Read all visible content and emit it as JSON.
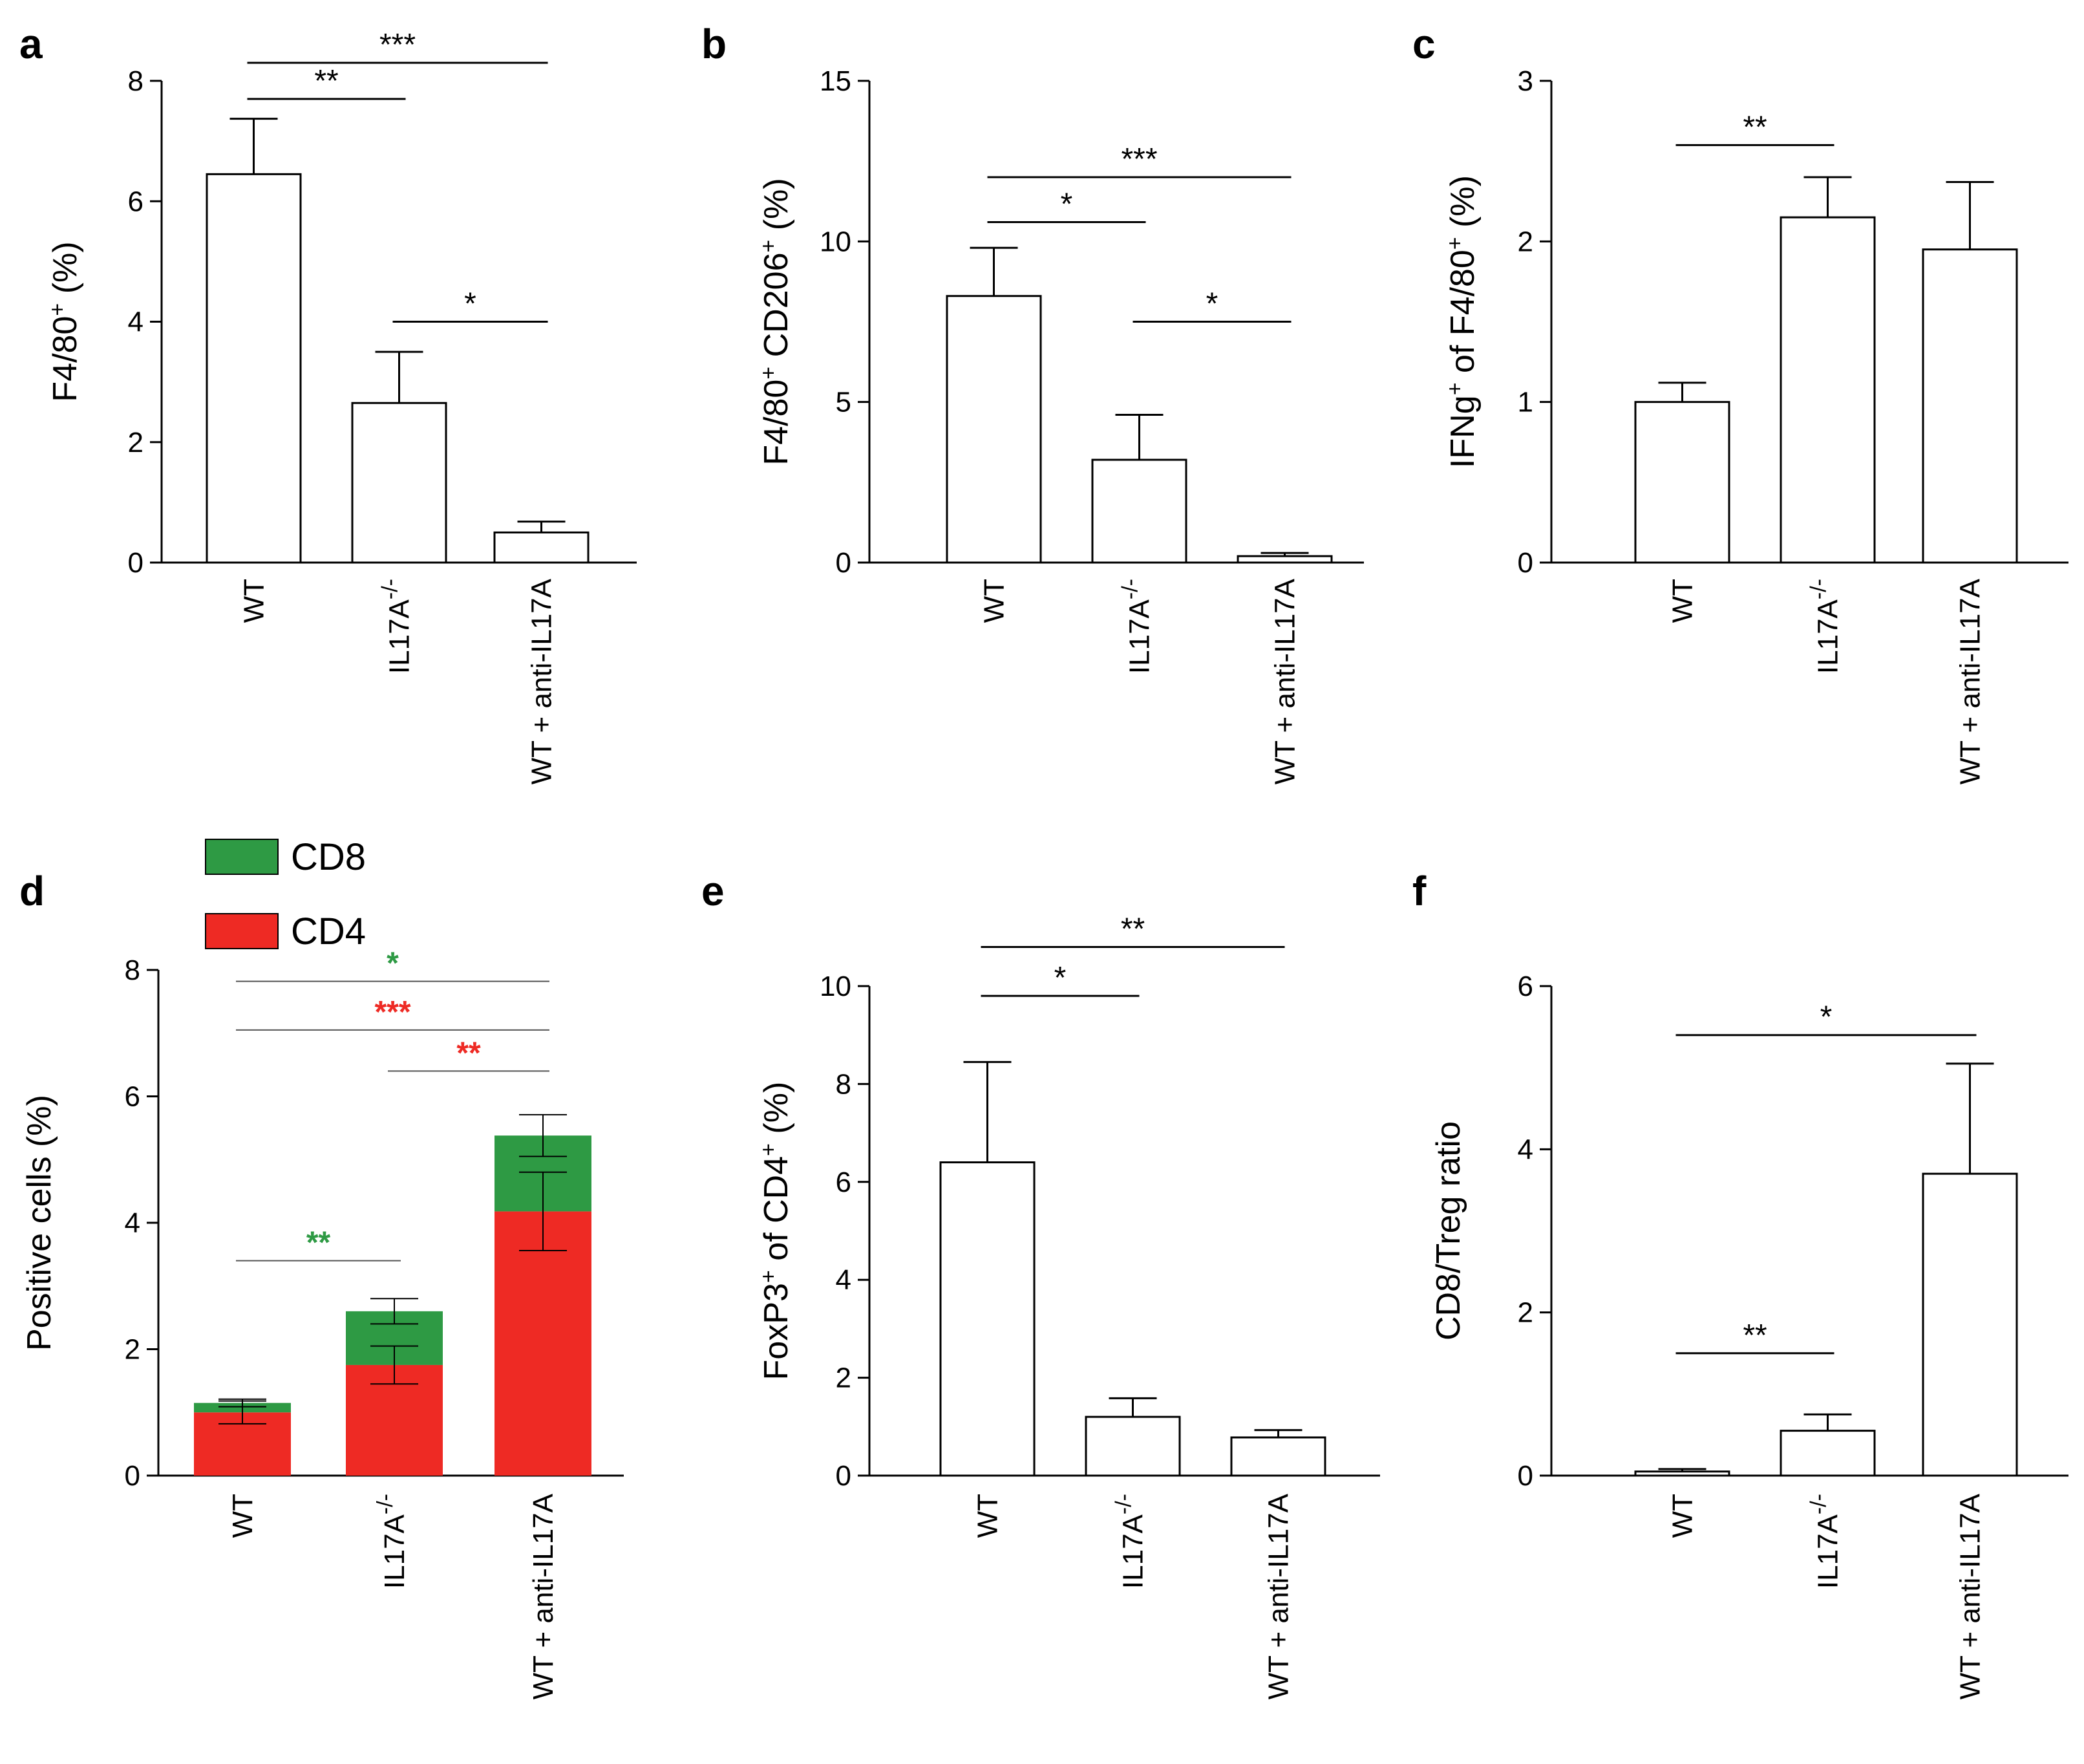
{
  "colors": {
    "cd8": "#2e9a44",
    "cd4": "#ee2a24",
    "black": "#000000"
  },
  "chart_data": [
    {
      "panel": "a",
      "type": "bar",
      "ylabel": {
        "pre": "F4/80",
        "sup1": "+",
        "post": " (%)",
        "sup2": "",
        "post2": ""
      },
      "ylim": [
        0,
        8
      ],
      "yticks": [
        0,
        2,
        4,
        6,
        8
      ],
      "categories": [
        {
          "main": "WT",
          "sup": ""
        },
        {
          "main": "IL17A",
          "sup": "-/-"
        },
        {
          "main": "WT + anti-IL17A",
          "sup": ""
        }
      ],
      "values": [
        6.45,
        2.65,
        0.5
      ],
      "errors": [
        0.92,
        0.85,
        0.18
      ],
      "significance": [
        {
          "from": 0,
          "to": 2,
          "y": 8.3,
          "label": "***",
          "color": "black"
        },
        {
          "from": 0,
          "to": 1,
          "y": 7.7,
          "label": "**",
          "color": "black"
        },
        {
          "from": 1,
          "to": 2,
          "y": 4.0,
          "label": "*",
          "color": "black"
        }
      ]
    },
    {
      "panel": "b",
      "type": "bar",
      "ylabel": {
        "pre": "F4/80",
        "sup1": "+",
        "post": " CD206",
        "sup2": "+",
        "post2": " (%)"
      },
      "ylim": [
        0,
        15
      ],
      "yticks": [
        0,
        5,
        10,
        15
      ],
      "categories": [
        {
          "main": "WT",
          "sup": ""
        },
        {
          "main": "IL17A",
          "sup": "-/-"
        },
        {
          "main": "WT + anti-IL17A",
          "sup": ""
        }
      ],
      "values": [
        8.3,
        3.2,
        0.2
      ],
      "errors": [
        1.5,
        1.4,
        0.1
      ],
      "significance": [
        {
          "from": 0,
          "to": 2,
          "y": 12.0,
          "label": "***",
          "color": "black"
        },
        {
          "from": 0,
          "to": 1,
          "y": 10.6,
          "label": "*",
          "color": "black"
        },
        {
          "from": 1,
          "to": 2,
          "y": 7.5,
          "label": "*",
          "color": "black"
        }
      ]
    },
    {
      "panel": "c",
      "type": "bar",
      "ylabel": {
        "pre": "IFNg",
        "sup1": "+",
        "post": " of F4/80",
        "sup2": "+",
        "post2": " (%)"
      },
      "ylim": [
        0,
        3
      ],
      "yticks": [
        0,
        1,
        2,
        3
      ],
      "categories": [
        {
          "main": "WT",
          "sup": ""
        },
        {
          "main": "IL17A",
          "sup": "-/-"
        },
        {
          "main": "WT + anti-IL17A",
          "sup": ""
        }
      ],
      "values": [
        1.0,
        2.15,
        1.95
      ],
      "errors": [
        0.12,
        0.25,
        0.42
      ],
      "significance": [
        {
          "from": 0,
          "to": 1,
          "y": 2.6,
          "label": "**",
          "color": "black"
        }
      ]
    },
    {
      "panel": "d",
      "type": "stacked-bar",
      "ylabel": {
        "pre": "Positive cells (%)",
        "sup1": "",
        "post": "",
        "sup2": "",
        "post2": ""
      },
      "ylim": [
        0,
        8
      ],
      "yticks": [
        0,
        2,
        4,
        6,
        8
      ],
      "categories": [
        {
          "main": "WT",
          "sup": ""
        },
        {
          "main": "IL17A",
          "sup": "-/-"
        },
        {
          "main": "WT + anti-IL17A",
          "sup": ""
        }
      ],
      "legend": [
        {
          "name": "CD8",
          "color": "cd8"
        },
        {
          "name": "CD4",
          "color": "cd4"
        }
      ],
      "series": [
        {
          "name": "CD4",
          "color": "cd4",
          "values": [
            1.0,
            1.75,
            4.18
          ],
          "errors": [
            0.18,
            0.3,
            0.62
          ]
        },
        {
          "name": "CD8",
          "color": "cd8",
          "values": [
            0.15,
            0.85,
            1.2
          ],
          "errors": [
            0.06,
            0.2,
            0.33
          ]
        }
      ],
      "significance": [
        {
          "from": 0,
          "to": 2,
          "y": 7.82,
          "label": "*",
          "color": "cd8"
        },
        {
          "from": 0,
          "to": 2,
          "y": 7.05,
          "label": "***",
          "color": "cd4"
        },
        {
          "from": 1,
          "to": 2,
          "y": 6.4,
          "label": "**",
          "color": "cd4"
        },
        {
          "from": 0,
          "to": 1,
          "y": 3.4,
          "label": "**",
          "color": "cd8"
        }
      ]
    },
    {
      "panel": "e",
      "type": "bar",
      "ylabel": {
        "pre": "FoxP3",
        "sup1": "+",
        "post": " of CD4",
        "sup2": "+",
        "post2": " (%)"
      },
      "ylim": [
        0,
        10
      ],
      "yticks": [
        0,
        2,
        4,
        6,
        8,
        10
      ],
      "categories": [
        {
          "main": "WT",
          "sup": ""
        },
        {
          "main": "IL17A",
          "sup": "-/-"
        },
        {
          "main": "WT + anti-IL17A",
          "sup": ""
        }
      ],
      "values": [
        6.4,
        1.2,
        0.78
      ],
      "errors": [
        2.05,
        0.38,
        0.15
      ],
      "significance": [
        {
          "from": 0,
          "to": 2,
          "y": 10.8,
          "label": "**",
          "color": "black"
        },
        {
          "from": 0,
          "to": 1,
          "y": 9.8,
          "label": "*",
          "color": "black"
        }
      ]
    },
    {
      "panel": "f",
      "type": "bar",
      "ylabel": {
        "pre": "CD8/Treg ratio",
        "sup1": "",
        "post": "",
        "sup2": "",
        "post2": ""
      },
      "ylim": [
        0,
        6
      ],
      "yticks": [
        0,
        2,
        4,
        6
      ],
      "categories": [
        {
          "main": "WT",
          "sup": ""
        },
        {
          "main": "IL17A",
          "sup": "-/-"
        },
        {
          "main": "WT + anti-IL17A",
          "sup": ""
        }
      ],
      "values": [
        0.05,
        0.55,
        3.7
      ],
      "errors": [
        0.03,
        0.2,
        1.35
      ],
      "significance": [
        {
          "from": 0,
          "to": 2,
          "y": 5.4,
          "label": "*",
          "color": "black"
        },
        {
          "from": 0,
          "to": 1,
          "y": 1.5,
          "label": "**",
          "color": "black"
        }
      ]
    }
  ]
}
